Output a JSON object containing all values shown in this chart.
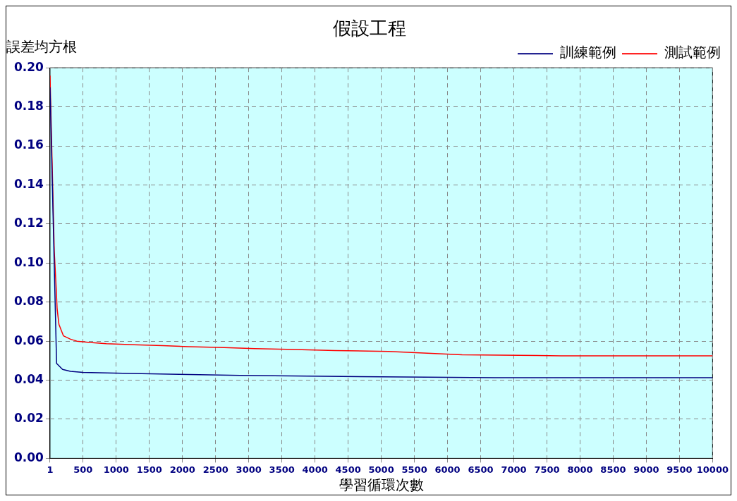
{
  "chart_data": {
    "type": "line",
    "title": "假設工程",
    "ylabel": "誤差均方根",
    "xlabel": "學習循環次數",
    "xlim": [
      1,
      10000
    ],
    "xticks": [
      1,
      500,
      1000,
      1500,
      2000,
      2500,
      3000,
      3500,
      4000,
      4500,
      5000,
      5500,
      6000,
      6500,
      7000,
      7500,
      8000,
      8500,
      9000,
      9500,
      10000
    ],
    "ylim": [
      0,
      0.2
    ],
    "yticks": [
      {
        "value": 0,
        "label": "0.00"
      },
      0.02,
      0.04,
      0.06,
      0.08,
      {
        "value": 0.1,
        "label": "0.10"
      },
      0.12,
      0.14,
      0.16,
      0.18,
      {
        "value": 0.2,
        "label": "0.20"
      }
    ],
    "grid": true,
    "legend": "top right",
    "marker": "none",
    "line_style": "solid",
    "series": [
      {
        "name": "訓練範例",
        "color": "#000080",
        "x": [
          1,
          100,
          190,
          310,
          500,
          1100,
          1950,
          2870,
          4150,
          6710,
          10000
        ],
        "values": [
          0.19,
          0.0486,
          0.0455,
          0.0445,
          0.044,
          0.0435,
          0.043,
          0.0425,
          0.042,
          0.0413,
          0.0413
        ]
      },
      {
        "name": "測試範例",
        "color": "#ff0000",
        "x": [
          1,
          22,
          65,
          94,
          108,
          136,
          204,
          310,
          407,
          600,
          850,
          1270,
          1700,
          2090,
          2630,
          3090,
          3700,
          4300,
          5110,
          6220,
          7710,
          10000
        ],
        "values": [
          0.196,
          0.166,
          0.106,
          0.087,
          0.0765,
          0.0685,
          0.0627,
          0.061,
          0.06,
          0.0593,
          0.0587,
          0.0582,
          0.0577,
          0.0572,
          0.0567,
          0.0562,
          0.0557,
          0.0552,
          0.0547,
          0.053,
          0.0525,
          0.0525
        ]
      }
    ]
  }
}
